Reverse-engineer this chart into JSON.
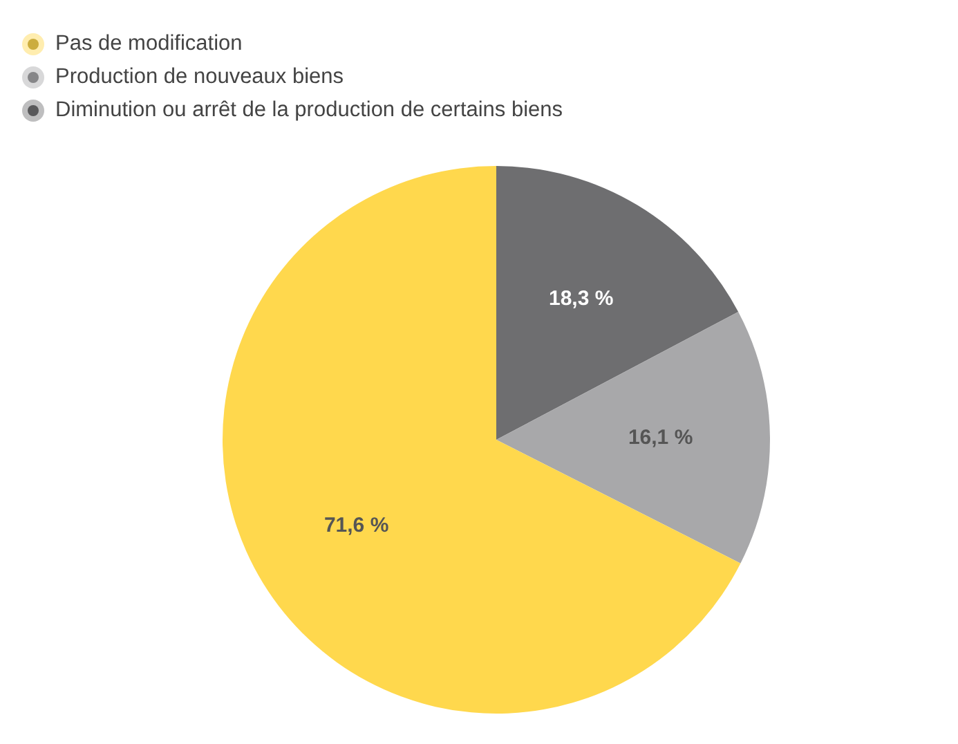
{
  "chart_data": {
    "type": "pie",
    "categories": [
      "Pas de modification",
      "Production de nouveaux biens",
      "Diminution ou arrêt de la production de certains biens"
    ],
    "values": [
      71.6,
      16.1,
      18.3
    ],
    "colors": [
      "#ffd84d",
      "#a8a8aa",
      "#6e6e70"
    ],
    "value_labels": [
      "71,6 %",
      "16,1 %",
      "18,3 %"
    ],
    "legend": "top left"
  }
}
